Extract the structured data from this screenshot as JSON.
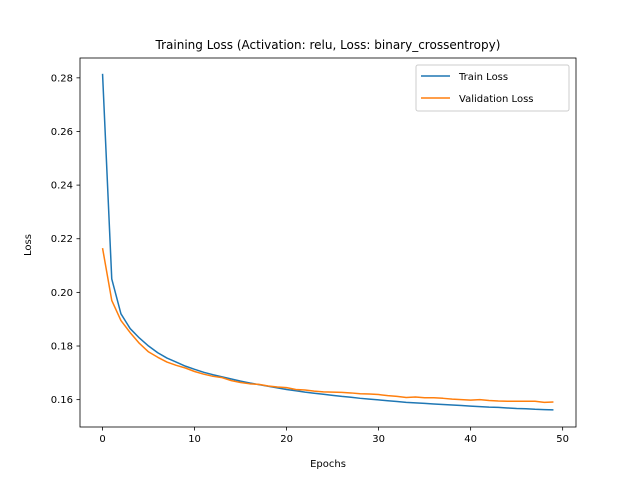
{
  "chart_data": {
    "type": "line",
    "title": "Training Loss (Activation: relu, Loss: binary_crossentropy)",
    "xlabel": "Epochs",
    "ylabel": "Loss",
    "xlim": [
      -2.45,
      51.45
    ],
    "ylim": [
      0.1498,
      0.2874
    ],
    "xticks": [
      0,
      10,
      20,
      30,
      40,
      50
    ],
    "yticks": [
      0.16,
      0.18,
      0.2,
      0.22,
      0.24,
      0.26,
      0.28
    ],
    "ytick_labels": [
      "0.16",
      "0.18",
      "0.20",
      "0.22",
      "0.24",
      "0.26",
      "0.28"
    ],
    "legend_position": "top-right",
    "x": [
      0,
      1,
      2,
      3,
      4,
      5,
      6,
      7,
      8,
      9,
      10,
      11,
      12,
      13,
      14,
      15,
      16,
      17,
      18,
      19,
      20,
      21,
      22,
      23,
      24,
      25,
      26,
      27,
      28,
      29,
      30,
      31,
      32,
      33,
      34,
      35,
      36,
      37,
      38,
      39,
      40,
      41,
      42,
      43,
      44,
      45,
      46,
      47,
      48,
      49
    ],
    "series": [
      {
        "name": "Train Loss",
        "color": "#1f77b4",
        "values": [
          0.2815,
          0.205,
          0.192,
          0.1865,
          0.183,
          0.18,
          0.1775,
          0.1755,
          0.174,
          0.1725,
          0.1713,
          0.1702,
          0.1693,
          0.1685,
          0.1677,
          0.1669,
          0.1662,
          0.1656,
          0.165,
          0.1644,
          0.1638,
          0.1633,
          0.1628,
          0.1624,
          0.162,
          0.1616,
          0.1612,
          0.1609,
          0.1605,
          0.1602,
          0.1599,
          0.1596,
          0.1593,
          0.159,
          0.1588,
          0.1586,
          0.1584,
          0.1582,
          0.158,
          0.1578,
          0.1576,
          0.1574,
          0.1572,
          0.1571,
          0.1569,
          0.1567,
          0.1566,
          0.1564,
          0.1563,
          0.1562
        ]
      },
      {
        "name": "Validation Loss",
        "color": "#ff7f0e",
        "values": [
          0.2165,
          0.197,
          0.1895,
          0.185,
          0.181,
          0.1778,
          0.1758,
          0.174,
          0.1728,
          0.1718,
          0.1705,
          0.1695,
          0.1687,
          0.1682,
          0.1671,
          0.1664,
          0.1659,
          0.1657,
          0.1651,
          0.1647,
          0.1645,
          0.1638,
          0.1636,
          0.1632,
          0.1629,
          0.1628,
          0.1627,
          0.1625,
          0.1622,
          0.1621,
          0.1619,
          0.1615,
          0.1612,
          0.1608,
          0.161,
          0.1607,
          0.1607,
          0.1605,
          0.1602,
          0.16,
          0.1598,
          0.16,
          0.1597,
          0.1595,
          0.1594,
          0.1594,
          0.1594,
          0.1594,
          0.159,
          0.1591
        ]
      }
    ]
  }
}
